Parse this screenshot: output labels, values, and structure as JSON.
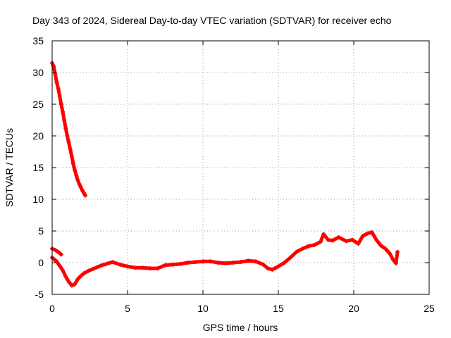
{
  "chart_data": {
    "type": "scatter",
    "title": "Day 343 of 2024, Sidereal Day-to-day VTEC variation (SDTVAR) for receiver echo",
    "xlabel": "GPS time / hours",
    "ylabel": "SDTVAR / TECUs",
    "xlim": [
      0,
      25
    ],
    "ylim": [
      -5,
      35
    ],
    "xticks": [
      0,
      5,
      10,
      15,
      20,
      25
    ],
    "yticks": [
      -5,
      0,
      5,
      10,
      15,
      20,
      25,
      30,
      35
    ],
    "grid": true,
    "marker_color": "#ff0000",
    "series": [
      {
        "name": "high branch",
        "x": [
          0.0,
          0.1,
          0.2,
          0.3,
          0.4,
          0.5,
          0.6,
          0.7,
          0.8,
          0.9,
          1.0,
          1.1,
          1.2,
          1.3,
          1.4,
          1.5,
          1.6,
          1.7,
          1.8,
          1.9,
          2.0,
          2.1,
          2.2
        ],
        "y": [
          31.5,
          31.0,
          29.8,
          28.5,
          27.5,
          26.3,
          25.0,
          23.8,
          22.5,
          21.2,
          20.0,
          19.0,
          17.9,
          16.8,
          15.6,
          14.6,
          13.8,
          13.0,
          12.4,
          11.9,
          11.4,
          11.0,
          10.6
        ]
      },
      {
        "name": "upper low branch",
        "x": [
          0.0,
          0.2,
          0.4,
          0.6
        ],
        "y": [
          2.2,
          2.0,
          1.7,
          1.3
        ]
      },
      {
        "name": "main trace",
        "x": [
          0.0,
          0.3,
          0.5,
          0.7,
          0.9,
          1.1,
          1.3,
          1.5,
          1.7,
          1.9,
          2.1,
          2.4,
          2.7,
          3.0,
          3.3,
          3.6,
          4.0,
          4.5,
          5.0,
          5.5,
          6.0,
          6.5,
          7.0,
          7.5,
          8.0,
          8.5,
          9.0,
          9.5,
          10.0,
          10.5,
          11.0,
          11.5,
          12.0,
          12.5,
          13.0,
          13.5,
          14.0,
          14.3,
          14.6,
          15.0,
          15.4,
          15.8,
          16.2,
          16.6,
          17.0,
          17.4,
          17.8,
          18.0,
          18.3,
          18.6,
          19.0,
          19.5,
          19.9,
          20.3,
          20.6,
          20.9,
          21.2,
          21.5,
          21.8,
          22.1,
          22.4,
          22.6,
          22.8,
          22.9
        ],
        "y": [
          0.8,
          0.2,
          -0.5,
          -1.2,
          -2.2,
          -3.0,
          -3.6,
          -3.4,
          -2.6,
          -2.1,
          -1.7,
          -1.3,
          -1.0,
          -0.7,
          -0.4,
          -0.2,
          0.1,
          -0.3,
          -0.6,
          -0.8,
          -0.8,
          -0.9,
          -0.9,
          -0.4,
          -0.3,
          -0.2,
          0.0,
          0.1,
          0.2,
          0.2,
          0.0,
          -0.1,
          0.0,
          0.1,
          0.3,
          0.2,
          -0.3,
          -0.9,
          -1.1,
          -0.6,
          0.0,
          0.8,
          1.7,
          2.2,
          2.6,
          2.8,
          3.3,
          4.5,
          3.6,
          3.5,
          4.0,
          3.4,
          3.6,
          3.0,
          4.2,
          4.6,
          4.8,
          3.6,
          2.7,
          2.2,
          1.4,
          0.5,
          -0.1,
          1.7
        ]
      }
    ]
  }
}
